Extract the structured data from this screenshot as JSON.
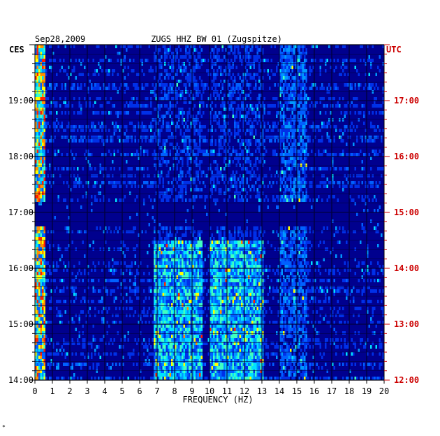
{
  "chart_data": {
    "type": "heatmap",
    "date": "Sep28,2009",
    "title": "ZUGS HHZ BW 01 (Zugspitze)",
    "xlabel": "FREQUENCY (HZ)",
    "xlim": [
      0,
      20
    ],
    "x_ticks": [
      "0",
      "1",
      "2",
      "3",
      "4",
      "5",
      "6",
      "7",
      "8",
      "9",
      "10",
      "11",
      "12",
      "13",
      "14",
      "15",
      "16",
      "17",
      "18",
      "19",
      "20"
    ],
    "left_axis_label": "CES",
    "right_axis_label": "UTC",
    "left_ticks": [
      "19:00",
      "18:00",
      "17:00",
      "16:00",
      "15:00",
      "14:00"
    ],
    "right_ticks": [
      "17:00",
      "16:00",
      "15:00",
      "14:00",
      "13:00",
      "12:00"
    ],
    "time_range_utc": [
      "12:00",
      "18:00"
    ],
    "colors": {
      "background": "#ffffff",
      "low": "#00009c",
      "medium": "#0060ff",
      "high": "#00e0ff",
      "very_high": "#ffff00",
      "peak": "#ff2000",
      "utc_labels": "#cc0000"
    },
    "energy_bands_hz": [
      {
        "range": [
          0,
          0.5
        ],
        "level": "very_high"
      },
      {
        "range": [
          6.8,
          9.5
        ],
        "level": "high"
      },
      {
        "range": [
          10,
          13
        ],
        "level": "high"
      },
      {
        "range": [
          14,
          15.5
        ],
        "level": "medium"
      }
    ]
  },
  "footer_mark": "*"
}
